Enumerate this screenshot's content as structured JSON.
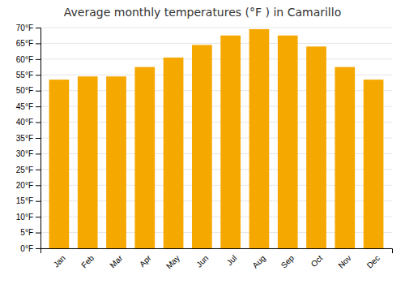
{
  "chart_data": {
    "type": "bar",
    "title": "Average monthly temperatures (°F ) in Camarillo",
    "categories": [
      "Jan",
      "Feb",
      "Mar",
      "Apr",
      "May",
      "Jun",
      "Jul",
      "Aug",
      "Sep",
      "Oct",
      "Nov",
      "Dec"
    ],
    "values": [
      53.5,
      54.5,
      54.5,
      57.5,
      60.5,
      64.5,
      67.5,
      69.5,
      67.5,
      64.0,
      57.5,
      53.5
    ],
    "color": "#F5A800",
    "ylim": [
      0,
      70
    ],
    "yticks": [
      {
        "value": 0,
        "label": "0°F"
      },
      {
        "value": 5,
        "label": "5°F"
      },
      {
        "value": 10,
        "label": "10°F"
      },
      {
        "value": 15,
        "label": "15°F"
      },
      {
        "value": 20,
        "label": "20°F"
      },
      {
        "value": 25,
        "label": "25°F"
      },
      {
        "value": 30,
        "label": "30°F"
      },
      {
        "value": 35,
        "label": "35°F"
      },
      {
        "value": 40,
        "label": "40°F"
      },
      {
        "value": 45,
        "label": "45°F"
      },
      {
        "value": 50,
        "label": "50°F"
      },
      {
        "value": 55,
        "label": "55°F"
      },
      {
        "value": 60,
        "label": "60°F"
      },
      {
        "value": 65,
        "label": "65°F"
      },
      {
        "value": 70,
        "label": "70°F"
      }
    ],
    "grid": true
  }
}
